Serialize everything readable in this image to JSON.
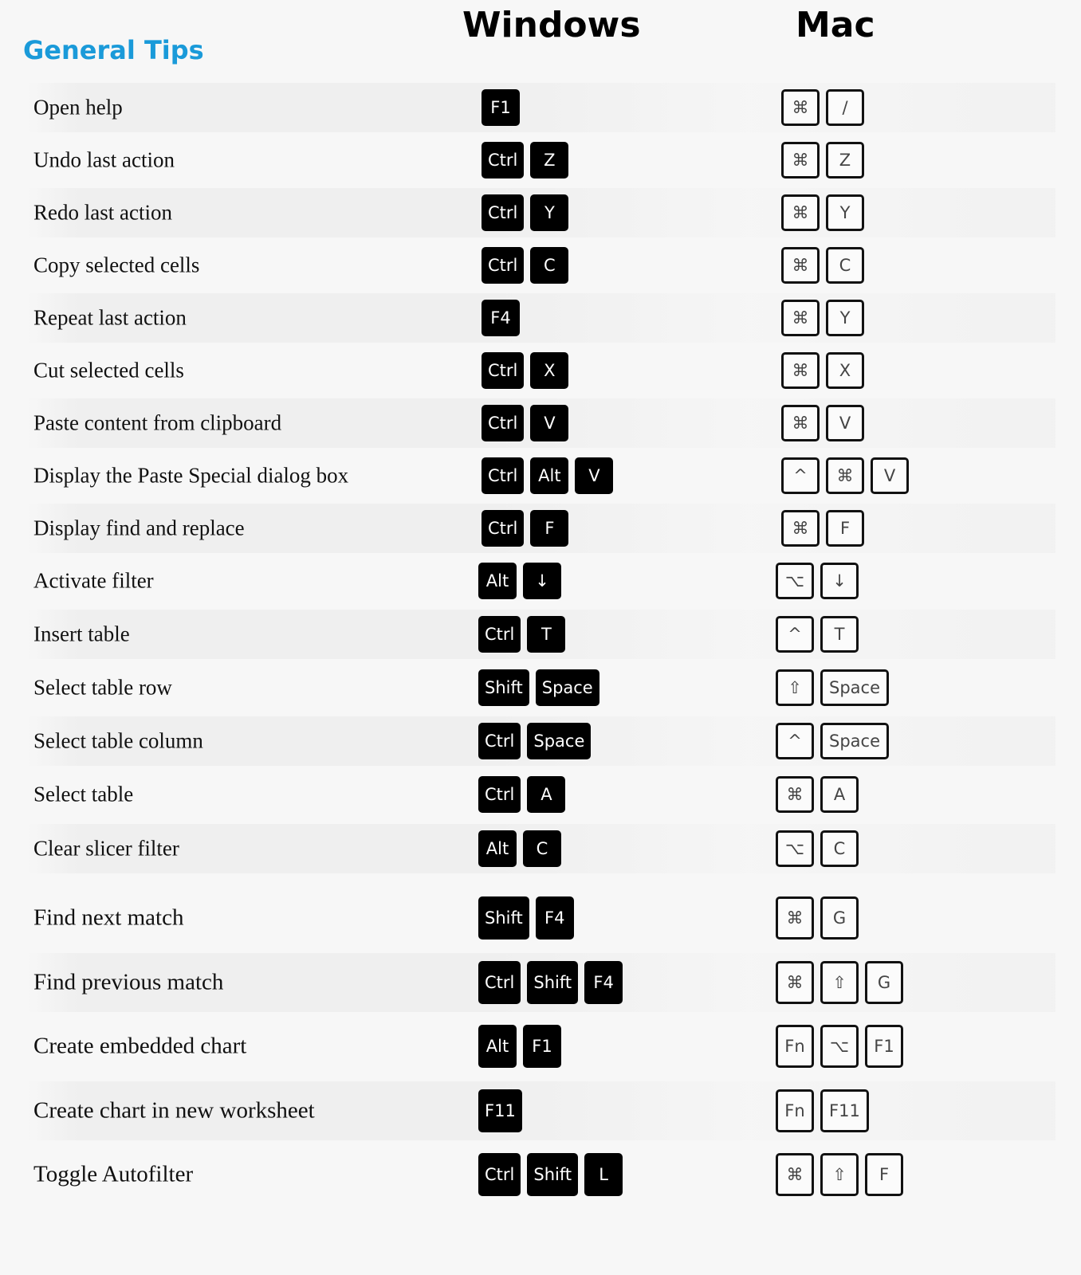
{
  "headers": {
    "windows": "Windows",
    "mac": "Mac",
    "section": "General Tips"
  },
  "shortcuts": [
    {
      "action": "Open help",
      "windows": [
        "F1"
      ],
      "mac": [
        "⌘",
        "/"
      ]
    },
    {
      "action": "Undo last action",
      "windows": [
        "Ctrl",
        "Z"
      ],
      "mac": [
        "⌘",
        "Z"
      ]
    },
    {
      "action": "Redo last action",
      "windows": [
        "Ctrl",
        "Y"
      ],
      "mac": [
        "⌘",
        "Y"
      ]
    },
    {
      "action": "Copy selected cells",
      "windows": [
        "Ctrl",
        "C"
      ],
      "mac": [
        "⌘",
        "C"
      ]
    },
    {
      "action": "Repeat last action",
      "windows": [
        "F4"
      ],
      "mac": [
        "⌘",
        "Y"
      ]
    },
    {
      "action": "Cut selected cells",
      "windows": [
        "Ctrl",
        "X"
      ],
      "mac": [
        "⌘",
        "X"
      ]
    },
    {
      "action": "Paste content from clipboard",
      "windows": [
        "Ctrl",
        "V"
      ],
      "mac": [
        "⌘",
        "V"
      ]
    },
    {
      "action": "Display the Paste Special dialog box",
      "windows": [
        "Ctrl",
        "Alt",
        "V"
      ],
      "mac": [
        "^",
        "⌘",
        "V"
      ]
    },
    {
      "action": "Display find and replace",
      "windows": [
        "Ctrl",
        "F"
      ],
      "mac": [
        "⌘",
        "F"
      ]
    },
    {
      "action": "Activate filter",
      "windows": [
        "Alt",
        "↓"
      ],
      "mac": [
        "⌥",
        "↓"
      ]
    },
    {
      "action": "Insert table",
      "windows": [
        "Ctrl",
        "T"
      ],
      "mac": [
        "^",
        "T"
      ]
    },
    {
      "action": "Select table row",
      "windows": [
        "Shift",
        "Space"
      ],
      "mac": [
        "⇧",
        "Space"
      ]
    },
    {
      "action": "Select table column",
      "windows": [
        "Ctrl",
        "Space"
      ],
      "mac": [
        "^",
        "Space"
      ]
    },
    {
      "action": "Select table",
      "windows": [
        "Ctrl",
        "A"
      ],
      "mac": [
        "⌘",
        "A"
      ]
    },
    {
      "action": "Clear slicer filter",
      "windows": [
        "Alt",
        "C"
      ],
      "mac": [
        "⌥",
        "C"
      ]
    },
    {
      "action": "Find next match",
      "windows": [
        "Shift",
        "F4"
      ],
      "mac": [
        "⌘",
        "G"
      ]
    },
    {
      "action": "Find previous match",
      "windows": [
        "Ctrl",
        "Shift",
        "F4"
      ],
      "mac": [
        "⌘",
        "⇧",
        "G"
      ]
    },
    {
      "action": "Create embedded chart",
      "windows": [
        "Alt",
        "F1"
      ],
      "mac": [
        "Fn",
        "⌥",
        "F1"
      ]
    },
    {
      "action": "Create chart in new worksheet",
      "windows": [
        "F11"
      ],
      "mac": [
        "Fn",
        "F11"
      ]
    },
    {
      "action": "Toggle Autofilter",
      "windows": [
        "Ctrl",
        "Shift",
        "L"
      ],
      "mac": [
        "⌘",
        "⇧",
        "F"
      ]
    }
  ]
}
